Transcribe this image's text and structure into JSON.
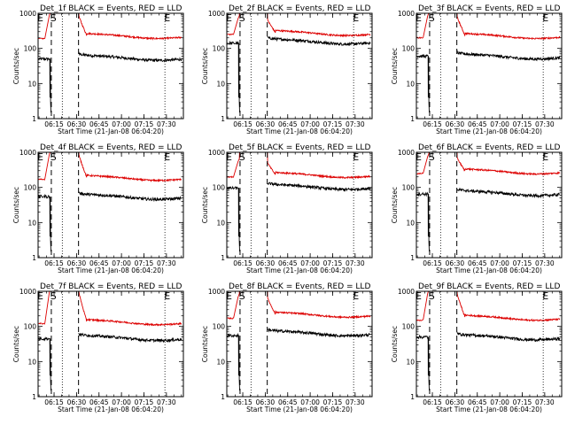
{
  "colors": {
    "events": "#000000",
    "lld": "#dd0000",
    "background": "#ffffff",
    "axes": "#000000"
  },
  "chart_data": {
    "type": "line",
    "ylabel": "Counts/sec",
    "xlabel": "Start Time (21-Jan-08 06:04:20)",
    "y_scale": "log",
    "ylim": [
      1,
      1000
    ],
    "y_ticks": [
      1,
      10,
      100,
      1000
    ],
    "y_tick_labels": [
      "1",
      "10",
      "100",
      "1000"
    ],
    "x_ticks": [
      "06:15",
      "06:30",
      "06:45",
      "07:00",
      "07:15",
      "07:30"
    ],
    "x_range": [
      "06:04:20",
      "07:41:20"
    ],
    "markers": [
      {
        "label": "E",
        "time": "06:05:50"
      },
      {
        "label": "S",
        "time": "06:14:30"
      },
      {
        "label": "E",
        "time": "07:30:30"
      }
    ],
    "vlines_dashed": [
      "06:13:10",
      "06:31:20"
    ],
    "vlines_dotted": [
      "06:20:30",
      "07:29:00"
    ],
    "panels": [
      {
        "title": "Det_1f BLACK = Events, RED = LLD",
        "series": [
          {
            "name": "BLACK = Events",
            "color": "#000000",
            "pre_level": 50,
            "post_level": 55,
            "post_peak": 80
          },
          {
            "name": "RED = LLD",
            "color": "#dd0000",
            "pre_level": 190,
            "post_level": 230,
            "post_peak": 850
          }
        ]
      },
      {
        "title": "Det_2f BLACK = Events, RED = LLD",
        "series": [
          {
            "name": "BLACK = Events",
            "color": "#000000",
            "pre_level": 140,
            "post_level": 160,
            "post_peak": 220
          },
          {
            "name": "RED = LLD",
            "color": "#dd0000",
            "pre_level": 250,
            "post_level": 280,
            "post_peak": 650
          }
        ]
      },
      {
        "title": "Det_3f BLACK = Events, RED = LLD",
        "series": [
          {
            "name": "BLACK = Events",
            "color": "#000000",
            "pre_level": 60,
            "post_level": 60,
            "post_peak": 90
          },
          {
            "name": "RED = LLD",
            "color": "#dd0000",
            "pre_level": 200,
            "post_level": 230,
            "post_peak": 800
          }
        ]
      },
      {
        "title": "Det_4f BLACK = Events, RED = LLD",
        "series": [
          {
            "name": "BLACK = Events",
            "color": "#000000",
            "pre_level": 55,
            "post_level": 55,
            "post_peak": 75
          },
          {
            "name": "RED = LLD",
            "color": "#dd0000",
            "pre_level": 170,
            "post_level": 190,
            "post_peak": 850
          }
        ]
      },
      {
        "title": "Det_5f BLACK = Events, RED = LLD",
        "series": [
          {
            "name": "BLACK = Events",
            "color": "#000000",
            "pre_level": 95,
            "post_level": 105,
            "post_peak": 130
          },
          {
            "name": "RED = LLD",
            "color": "#dd0000",
            "pre_level": 200,
            "post_level": 230,
            "post_peak": 500
          }
        ]
      },
      {
        "title": "Det_6f BLACK = Events, RED = LLD",
        "series": [
          {
            "name": "BLACK = Events",
            "color": "#000000",
            "pre_level": 65,
            "post_level": 70,
            "post_peak": 90
          },
          {
            "name": "RED = LLD",
            "color": "#dd0000",
            "pre_level": 250,
            "post_level": 290,
            "post_peak": 700
          }
        ]
      },
      {
        "title": "Det_7f BLACK = Events, RED = LLD",
        "series": [
          {
            "name": "BLACK = Events",
            "color": "#000000",
            "pre_level": 45,
            "post_level": 48,
            "post_peak": 65
          },
          {
            "name": "RED = LLD",
            "color": "#dd0000",
            "pre_level": 120,
            "post_level": 135,
            "post_peak": 950
          }
        ]
      },
      {
        "title": "Det_8f BLACK = Events, RED = LLD",
        "series": [
          {
            "name": "BLACK = Events",
            "color": "#000000",
            "pre_level": 55,
            "post_level": 65,
            "post_peak": 85
          },
          {
            "name": "RED = LLD",
            "color": "#dd0000",
            "pre_level": 170,
            "post_level": 220,
            "post_peak": 650
          }
        ]
      },
      {
        "title": "Det_9f BLACK = Events, RED = LLD",
        "series": [
          {
            "name": "BLACK = Events",
            "color": "#000000",
            "pre_level": 50,
            "post_level": 50,
            "post_peak": 70
          },
          {
            "name": "RED = LLD",
            "color": "#dd0000",
            "pre_level": 150,
            "post_level": 180,
            "post_peak": 850
          }
        ]
      }
    ]
  }
}
